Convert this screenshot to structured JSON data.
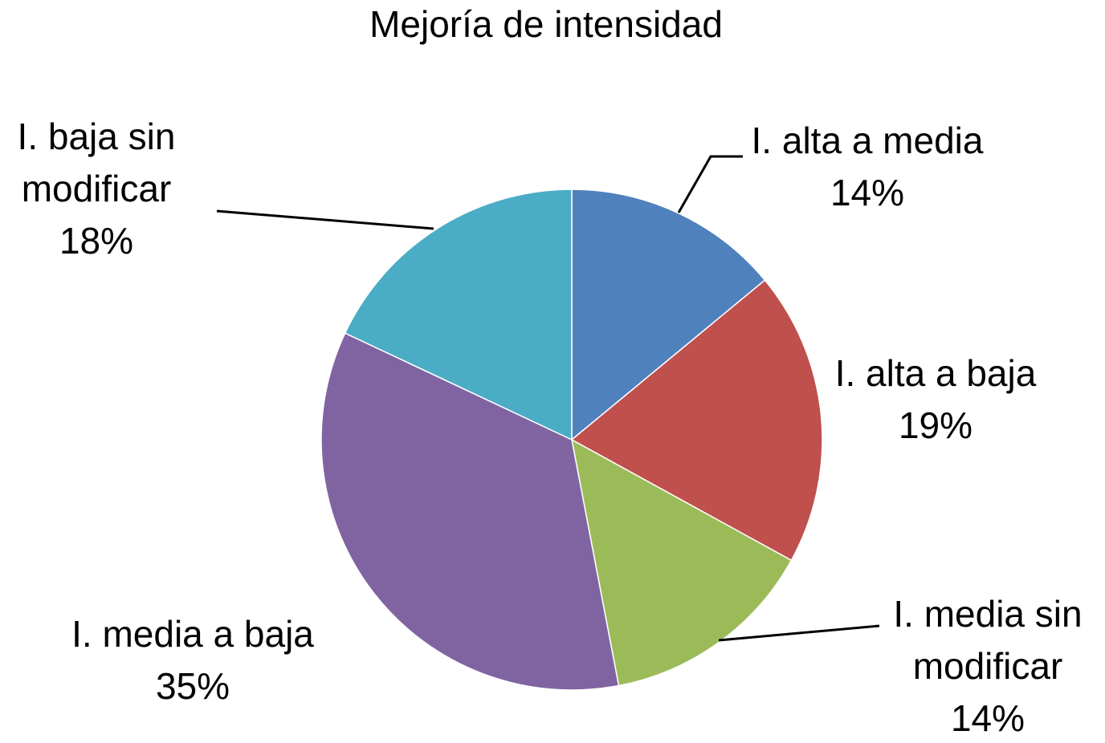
{
  "chart_data": {
    "type": "pie",
    "title": "Mejoría de intensidad",
    "categories": [
      "I. alta a media",
      "I. alta a baja",
      "I. media sin modificar",
      "I. media a baja",
      "I. baja sin modificar"
    ],
    "values": [
      14,
      19,
      14,
      35,
      18
    ],
    "value_labels": [
      "14%",
      "19%",
      "14%",
      "35%",
      "18%"
    ],
    "colors": [
      "#4f81bd",
      "#c0504d",
      "#9bbb59",
      "#8064a2",
      "#4bacc6"
    ]
  }
}
